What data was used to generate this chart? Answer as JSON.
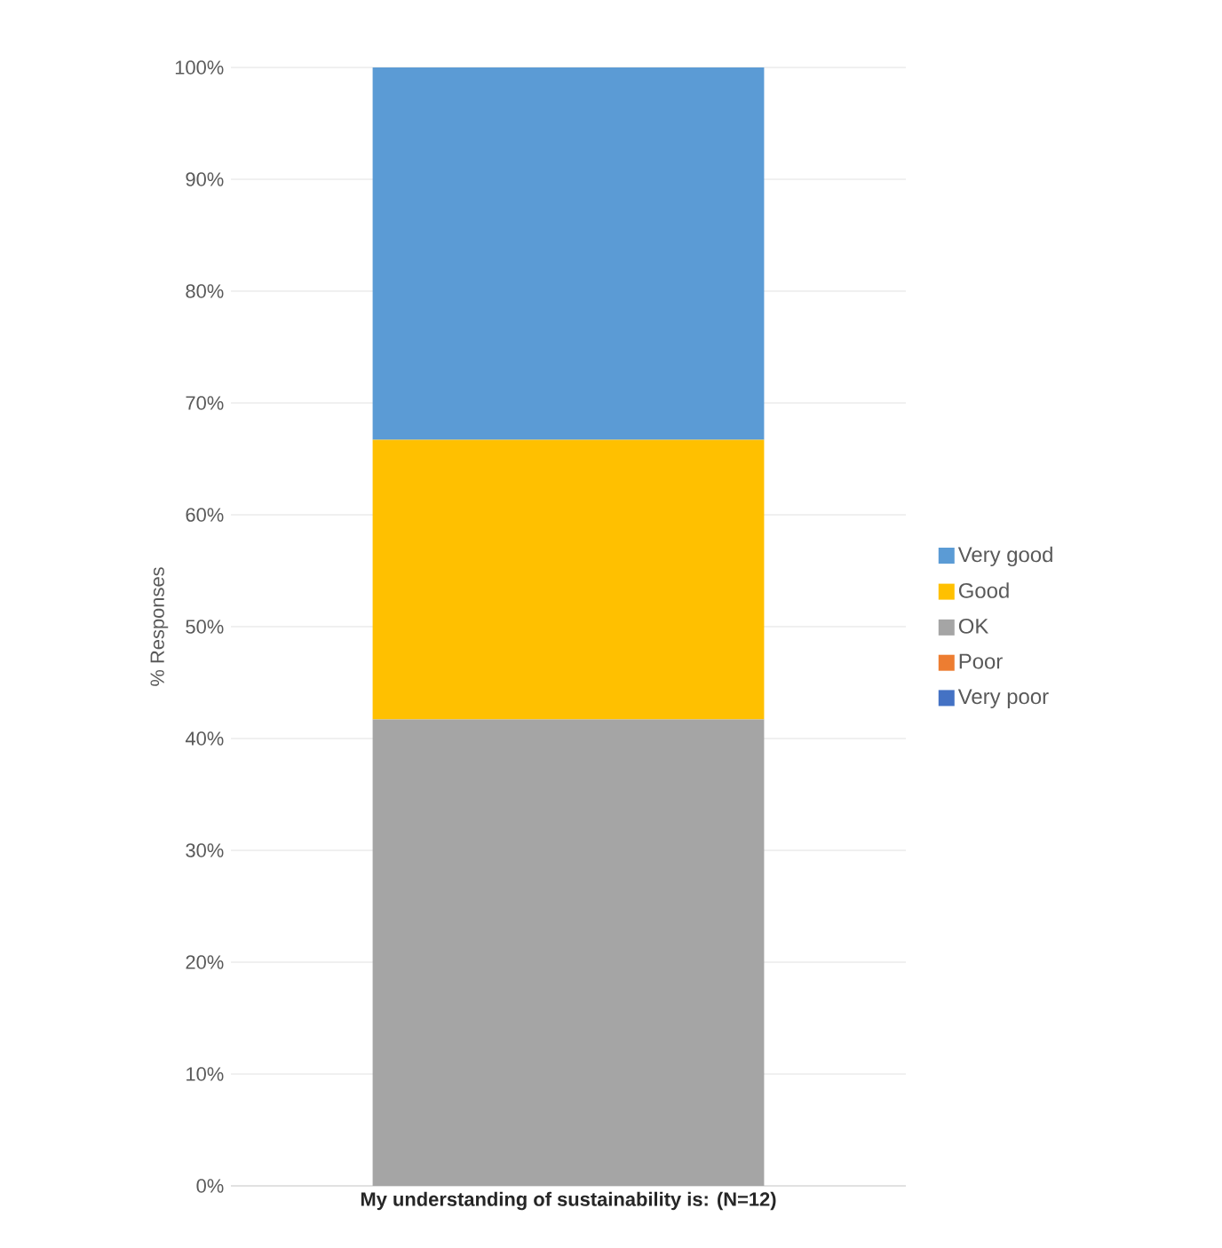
{
  "chart_data": {
    "type": "bar",
    "stacked": true,
    "xlabel": "My understanding of sustainability is: (N=12)",
    "ylabel": "% Responses",
    "categories": [
      null
    ],
    "series": [
      {
        "name": "Very poor",
        "color": "#4472c4",
        "values": [
          0
        ]
      },
      {
        "name": "Poor",
        "color": "#ed7d31",
        "values": [
          0
        ]
      },
      {
        "name": "OK",
        "color": "#a5a5a5",
        "values": [
          41.7
        ]
      },
      {
        "name": "Good",
        "color": "#ffc000",
        "values": [
          25
        ]
      },
      {
        "name": "Very good",
        "color": "#5b9bd5",
        "values": [
          33.3
        ]
      }
    ],
    "ylim": [
      0,
      100
    ],
    "yticks": [
      {
        "value": 0,
        "label": "0%"
      },
      {
        "value": 10,
        "label": "10%"
      },
      {
        "value": 20,
        "label": "20%"
      },
      {
        "value": 30,
        "label": "30%"
      },
      {
        "value": 40,
        "label": "40%"
      },
      {
        "value": 50,
        "label": "50%"
      },
      {
        "value": 60,
        "label": "60%"
      },
      {
        "value": 70,
        "label": "70%"
      },
      {
        "value": 80,
        "label": "80%"
      },
      {
        "value": 90,
        "label": "90%"
      },
      {
        "value": 100,
        "label": "100%"
      }
    ],
    "grid": "y",
    "legend": "right"
  }
}
